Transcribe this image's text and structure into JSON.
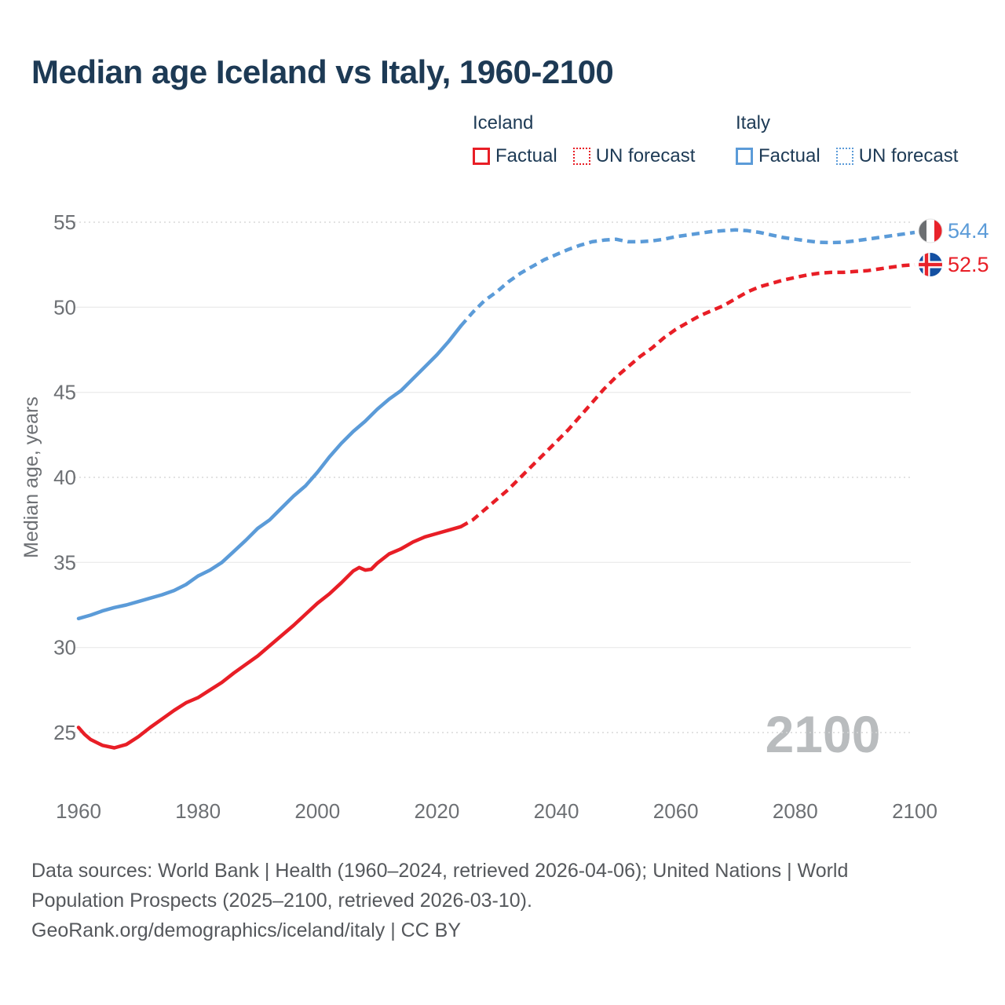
{
  "title": "Median age Iceland vs Italy, 1960-2100",
  "legend": {
    "iceland": {
      "label": "Iceland",
      "factual": "Factual",
      "forecast": "UN forecast"
    },
    "italy": {
      "label": "Italy",
      "factual": "Factual",
      "forecast": "UN forecast"
    }
  },
  "watermark": "2100",
  "footer": {
    "line1": "Data sources: World Bank | Health (1960–2024, retrieved 2026-04-06); United Nations | World",
    "line2": "Population Prospects (2025–2100, retrieved 2026-03-10).",
    "line3": "GeoRank.org/demographics/iceland/italy | CC BY"
  },
  "colors": {
    "iceland_line": "#e81e26",
    "italy_line": "#5b9bd8",
    "title_text": "#1d3a55",
    "tick_text": "#6d7074",
    "watermark_text": "#b9bcbe"
  },
  "chart_data": {
    "type": "line",
    "title": "Median age Iceland vs Italy, 1960-2100",
    "xlabel": "",
    "ylabel": "Median age, years",
    "xlim": [
      1955,
      2112
    ],
    "ylim": [
      23,
      56.5
    ],
    "x_ticks": [
      1960,
      1980,
      2000,
      2020,
      2040,
      2060,
      2080,
      2100
    ],
    "y_ticks": [
      25,
      30,
      35,
      40,
      45,
      50,
      55
    ],
    "grid": "horizontal",
    "legend_position": "top-right",
    "series": [
      {
        "name": "Italy Factual",
        "color": "#5b9bd8",
        "style": "solid",
        "points": [
          [
            1960,
            31.7
          ],
          [
            1962,
            31.9
          ],
          [
            1964,
            32.15
          ],
          [
            1966,
            32.35
          ],
          [
            1968,
            32.5
          ],
          [
            1970,
            32.7
          ],
          [
            1972,
            32.9
          ],
          [
            1974,
            33.1
          ],
          [
            1976,
            33.35
          ],
          [
            1978,
            33.7
          ],
          [
            1980,
            34.2
          ],
          [
            1982,
            34.55
          ],
          [
            1984,
            35.0
          ],
          [
            1986,
            35.65
          ],
          [
            1988,
            36.3
          ],
          [
            1990,
            37.0
          ],
          [
            1992,
            37.5
          ],
          [
            1994,
            38.2
          ],
          [
            1996,
            38.9
          ],
          [
            1998,
            39.5
          ],
          [
            2000,
            40.3
          ],
          [
            2002,
            41.2
          ],
          [
            2004,
            42.0
          ],
          [
            2006,
            42.7
          ],
          [
            2008,
            43.3
          ],
          [
            2010,
            44.0
          ],
          [
            2012,
            44.6
          ],
          [
            2014,
            45.1
          ],
          [
            2016,
            45.8
          ],
          [
            2018,
            46.5
          ],
          [
            2020,
            47.2
          ],
          [
            2022,
            48.0
          ],
          [
            2024,
            48.9
          ]
        ]
      },
      {
        "name": "Italy UN forecast",
        "color": "#5b9bd8",
        "style": "dashed",
        "points": [
          [
            2024,
            48.9
          ],
          [
            2026,
            49.7
          ],
          [
            2028,
            50.4
          ],
          [
            2030,
            50.9
          ],
          [
            2032,
            51.5
          ],
          [
            2034,
            52.0
          ],
          [
            2036,
            52.4
          ],
          [
            2038,
            52.8
          ],
          [
            2040,
            53.1
          ],
          [
            2042,
            53.4
          ],
          [
            2044,
            53.65
          ],
          [
            2046,
            53.85
          ],
          [
            2048,
            53.95
          ],
          [
            2050,
            54.0
          ],
          [
            2052,
            53.85
          ],
          [
            2054,
            53.85
          ],
          [
            2056,
            53.9
          ],
          [
            2058,
            54.0
          ],
          [
            2060,
            54.15
          ],
          [
            2062,
            54.25
          ],
          [
            2064,
            54.35
          ],
          [
            2066,
            54.45
          ],
          [
            2068,
            54.5
          ],
          [
            2070,
            54.55
          ],
          [
            2072,
            54.5
          ],
          [
            2074,
            54.4
          ],
          [
            2076,
            54.25
          ],
          [
            2078,
            54.1
          ],
          [
            2080,
            54.0
          ],
          [
            2082,
            53.9
          ],
          [
            2084,
            53.82
          ],
          [
            2086,
            53.8
          ],
          [
            2088,
            53.82
          ],
          [
            2090,
            53.9
          ],
          [
            2092,
            54.0
          ],
          [
            2094,
            54.1
          ],
          [
            2096,
            54.2
          ],
          [
            2098,
            54.3
          ],
          [
            2100,
            54.4
          ]
        ]
      },
      {
        "name": "Iceland Factual",
        "color": "#e81e26",
        "style": "solid",
        "points": [
          [
            1960,
            25.3
          ],
          [
            1961,
            24.9
          ],
          [
            1962,
            24.6
          ],
          [
            1964,
            24.25
          ],
          [
            1966,
            24.1
          ],
          [
            1968,
            24.3
          ],
          [
            1970,
            24.75
          ],
          [
            1972,
            25.3
          ],
          [
            1974,
            25.8
          ],
          [
            1976,
            26.3
          ],
          [
            1978,
            26.75
          ],
          [
            1980,
            27.05
          ],
          [
            1982,
            27.5
          ],
          [
            1984,
            27.95
          ],
          [
            1986,
            28.5
          ],
          [
            1988,
            29.0
          ],
          [
            1990,
            29.5
          ],
          [
            1992,
            30.1
          ],
          [
            1994,
            30.7
          ],
          [
            1996,
            31.3
          ],
          [
            1998,
            31.95
          ],
          [
            2000,
            32.6
          ],
          [
            2002,
            33.15
          ],
          [
            2004,
            33.8
          ],
          [
            2006,
            34.5
          ],
          [
            2007,
            34.7
          ],
          [
            2008,
            34.55
          ],
          [
            2009,
            34.6
          ],
          [
            2010,
            34.95
          ],
          [
            2012,
            35.5
          ],
          [
            2014,
            35.8
          ],
          [
            2016,
            36.2
          ],
          [
            2018,
            36.5
          ],
          [
            2020,
            36.7
          ],
          [
            2022,
            36.9
          ],
          [
            2024,
            37.1
          ]
        ]
      },
      {
        "name": "Iceland UN forecast",
        "color": "#e81e26",
        "style": "dashed",
        "points": [
          [
            2024,
            37.1
          ],
          [
            2026,
            37.5
          ],
          [
            2028,
            38.1
          ],
          [
            2030,
            38.7
          ],
          [
            2032,
            39.3
          ],
          [
            2034,
            40.0
          ],
          [
            2036,
            40.7
          ],
          [
            2038,
            41.4
          ],
          [
            2040,
            42.1
          ],
          [
            2042,
            42.8
          ],
          [
            2044,
            43.6
          ],
          [
            2046,
            44.4
          ],
          [
            2048,
            45.2
          ],
          [
            2050,
            45.9
          ],
          [
            2052,
            46.5
          ],
          [
            2054,
            47.1
          ],
          [
            2056,
            47.6
          ],
          [
            2058,
            48.2
          ],
          [
            2060,
            48.7
          ],
          [
            2062,
            49.1
          ],
          [
            2064,
            49.5
          ],
          [
            2066,
            49.8
          ],
          [
            2068,
            50.1
          ],
          [
            2070,
            50.5
          ],
          [
            2072,
            50.9
          ],
          [
            2074,
            51.2
          ],
          [
            2076,
            51.4
          ],
          [
            2078,
            51.6
          ],
          [
            2080,
            51.75
          ],
          [
            2082,
            51.9
          ],
          [
            2084,
            52.0
          ],
          [
            2086,
            52.05
          ],
          [
            2088,
            52.05
          ],
          [
            2090,
            52.1
          ],
          [
            2092,
            52.15
          ],
          [
            2094,
            52.25
          ],
          [
            2096,
            52.35
          ],
          [
            2098,
            52.45
          ],
          [
            2100,
            52.5
          ]
        ]
      }
    ],
    "end_labels": [
      {
        "series": "Italy",
        "value": "54.4",
        "flag": "italy-flag-icon"
      },
      {
        "series": "Iceland",
        "value": "52.5",
        "flag": "iceland-flag-icon"
      }
    ]
  }
}
